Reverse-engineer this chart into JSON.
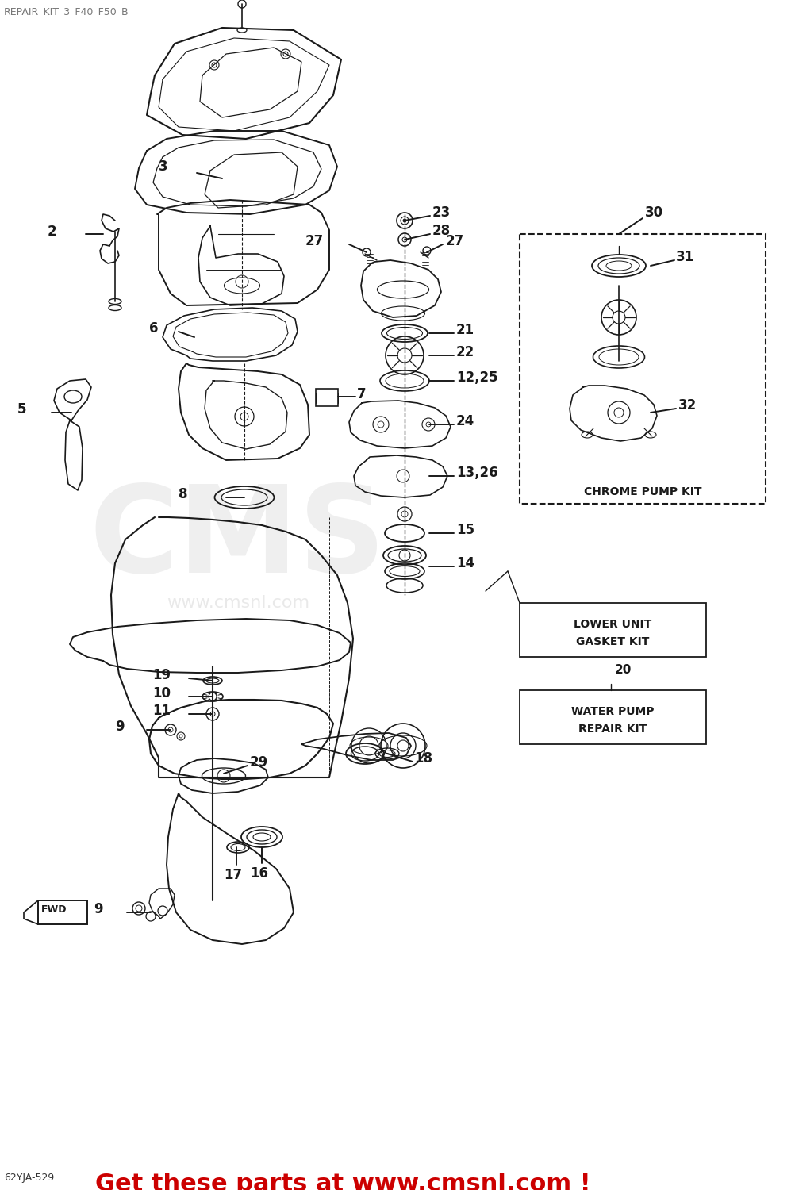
{
  "title": "REPAIR_KIT_3_F40_F50_B",
  "bg_color": "#ffffff",
  "diagram_color": "#1a1a1a",
  "footer_text": "62YJA-529",
  "ad_text": "Get these parts at www.cmsnl.com !",
  "ad_color": "#cc0000",
  "watermark_text": "CMS",
  "watermark_url": "www.cmsnl.com",
  "chrome_pump_kit_label": "CHROME PUMP KIT",
  "lower_unit_label1": "LOWER UNIT",
  "lower_unit_label2": "GASKET KIT",
  "water_pump_label1": "WATER PUMP",
  "water_pump_label2": "REPAIR KIT",
  "figsize": [
    10.03,
    15.0
  ],
  "dpi": 100
}
